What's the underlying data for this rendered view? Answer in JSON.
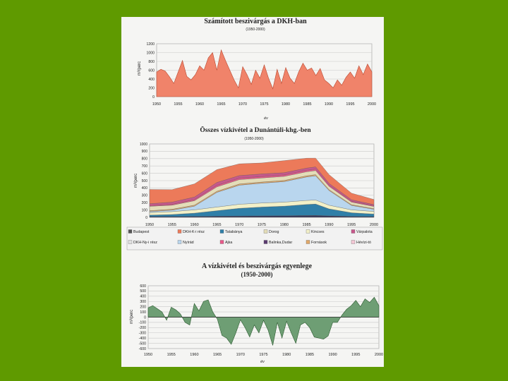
{
  "background_color": "#5f9a00",
  "chart_data": [
    {
      "type": "area",
      "title": "Számított beszivárgás a DKH-ban",
      "subtitle": "(1950-2000)",
      "ylabel": "m³/perc",
      "xlabel": "év",
      "ylim": [
        0,
        1200
      ],
      "yticks": [
        "0",
        "200",
        "400",
        "600",
        "800",
        "1000",
        "1200"
      ],
      "xticks": [
        "1950",
        "1955",
        "1960",
        "1965",
        "1970",
        "1975",
        "1980",
        "1985",
        "1990",
        "1995",
        "2000"
      ],
      "color": "#f0836a",
      "x": [
        1950,
        1951,
        1952,
        1953,
        1954,
        1955,
        1956,
        1957,
        1958,
        1959,
        1960,
        1961,
        1962,
        1963,
        1964,
        1965,
        1966,
        1967,
        1968,
        1969,
        1970,
        1971,
        1972,
        1973,
        1974,
        1975,
        1976,
        1977,
        1978,
        1979,
        1980,
        1981,
        1982,
        1983,
        1984,
        1985,
        1986,
        1987,
        1988,
        1989,
        1990,
        1991,
        1992,
        1993,
        1994,
        1995,
        1996,
        1997,
        1998,
        1999,
        2000
      ],
      "values": [
        560,
        620,
        580,
        450,
        300,
        560,
        820,
        460,
        380,
        500,
        700,
        600,
        880,
        1000,
        600,
        1060,
        820,
        600,
        380,
        200,
        680,
        500,
        280,
        600,
        420,
        720,
        420,
        180,
        620,
        300,
        660,
        420,
        300,
        560,
        760,
        600,
        650,
        480,
        640,
        380,
        300,
        200,
        380,
        260,
        440,
        560,
        420,
        700,
        500,
        740,
        560
      ]
    },
    {
      "type": "area",
      "stacked": true,
      "title": "Összes vízkivétel a Dunántúli-khg.-ben",
      "subtitle": "(1950-2000)",
      "ylabel": "m³/perc",
      "ylim": [
        0,
        1000
      ],
      "yticks": [
        "0",
        "100",
        "200",
        "300",
        "400",
        "500",
        "600",
        "700",
        "800",
        "900",
        "1000"
      ],
      "xticks": [
        "1950",
        "1955",
        "1960",
        "1965",
        "1970",
        "1975",
        "1980",
        "1985",
        "1990",
        "1995",
        "2000"
      ],
      "years": [
        1950,
        1955,
        1960,
        1965,
        1970,
        1975,
        1980,
        1985,
        1987,
        1990,
        1995,
        2000
      ],
      "series": [
        {
          "name": "Budapest",
          "color": "#3a3a5a",
          "values": [
            10,
            10,
            12,
            15,
            18,
            20,
            22,
            25,
            26,
            20,
            12,
            10
          ]
        },
        {
          "name": "Tatabánya",
          "color": "#2f7fa8",
          "values": [
            20,
            28,
            45,
            75,
            105,
            120,
            130,
            150,
            155,
            95,
            50,
            35
          ]
        },
        {
          "name": "Kincses",
          "color": "#f2f0c8",
          "values": [
            35,
            40,
            45,
            50,
            55,
            55,
            55,
            55,
            55,
            50,
            40,
            35
          ]
        },
        {
          "name": "Nyírád",
          "color": "#b9d6ee",
          "values": [
            15,
            20,
            50,
            200,
            260,
            270,
            280,
            320,
            330,
            200,
            60,
            30
          ]
        },
        {
          "name": "Fornások",
          "color": "#e0a86a",
          "values": [
            10,
            12,
            14,
            15,
            16,
            16,
            16,
            16,
            16,
            12,
            10,
            8
          ]
        },
        {
          "name": "Dorog",
          "color": "#e4ddb8",
          "values": [
            60,
            55,
            60,
            60,
            60,
            55,
            55,
            55,
            55,
            45,
            35,
            30
          ]
        },
        {
          "name": "Ajka",
          "color": "#e85a8a",
          "values": [
            10,
            12,
            15,
            20,
            20,
            20,
            20,
            20,
            20,
            15,
            12,
            10
          ]
        },
        {
          "name": "Várpalota",
          "color": "#c7588c",
          "values": [
            25,
            30,
            35,
            40,
            35,
            35,
            30,
            30,
            30,
            25,
            20,
            15
          ]
        },
        {
          "name": "DKH-K-i rész",
          "color": "#ec7a5a",
          "values": [
            195,
            170,
            180,
            175,
            160,
            150,
            165,
            135,
            120,
            120,
            90,
            70
          ]
        }
      ],
      "legend": [
        "Budapest",
        "DKH-K-i rész",
        "Tatabánya",
        "Dorog",
        "Kincses",
        "Várpalota",
        "DKH-Ny-i rész",
        "Nyírád",
        "Ajka",
        "Balinka,Dudar",
        "Fornások",
        "Hévízi-tó"
      ],
      "legend_colors": [
        "#555555",
        "#ec7a5a",
        "#2f7fa8",
        "#e4ddb8",
        "#f2f0c8",
        "#c7588c",
        "#e0e0e0",
        "#b9d6ee",
        "#e85a8a",
        "#5a3a70",
        "#e0a86a",
        "#f4c8d6"
      ]
    },
    {
      "type": "area",
      "title": "A vízkivétel és beszivárgás egyenlege",
      "subtitle": "(1950-2000)",
      "ylabel": "m³/perc",
      "xlabel": "év",
      "ylim": [
        -600,
        600
      ],
      "yticks": [
        "-600",
        "-500",
        "-400",
        "-300",
        "-200",
        "-100",
        "0",
        "100",
        "200",
        "300",
        "400",
        "500",
        "600"
      ],
      "xticks": [
        "1950",
        "1955",
        "1960",
        "1965",
        "1970",
        "1975",
        "1980",
        "1985",
        "1990",
        "1995",
        "2000"
      ],
      "color": "#6e9e74",
      "x": [
        1950,
        1951,
        1952,
        1953,
        1954,
        1955,
        1956,
        1957,
        1958,
        1959,
        1960,
        1961,
        1962,
        1963,
        1964,
        1965,
        1966,
        1967,
        1968,
        1969,
        1970,
        1971,
        1972,
        1973,
        1974,
        1975,
        1976,
        1977,
        1978,
        1979,
        1980,
        1981,
        1982,
        1983,
        1984,
        1985,
        1986,
        1987,
        1988,
        1989,
        1990,
        1991,
        1992,
        1993,
        1994,
        1995,
        1996,
        1997,
        1998,
        1999,
        2000
      ],
      "values": [
        180,
        220,
        160,
        100,
        -60,
        190,
        140,
        60,
        -100,
        -150,
        260,
        120,
        300,
        330,
        100,
        -40,
        -350,
        -400,
        -520,
        -300,
        -50,
        -200,
        -380,
        -150,
        -300,
        -60,
        -250,
        -540,
        -100,
        -400,
        -80,
        -300,
        -500,
        -150,
        -100,
        -200,
        -380,
        -400,
        -420,
        -360,
        -100,
        -100,
        40,
        150,
        220,
        320,
        200,
        350,
        280,
        380,
        220
      ]
    }
  ]
}
